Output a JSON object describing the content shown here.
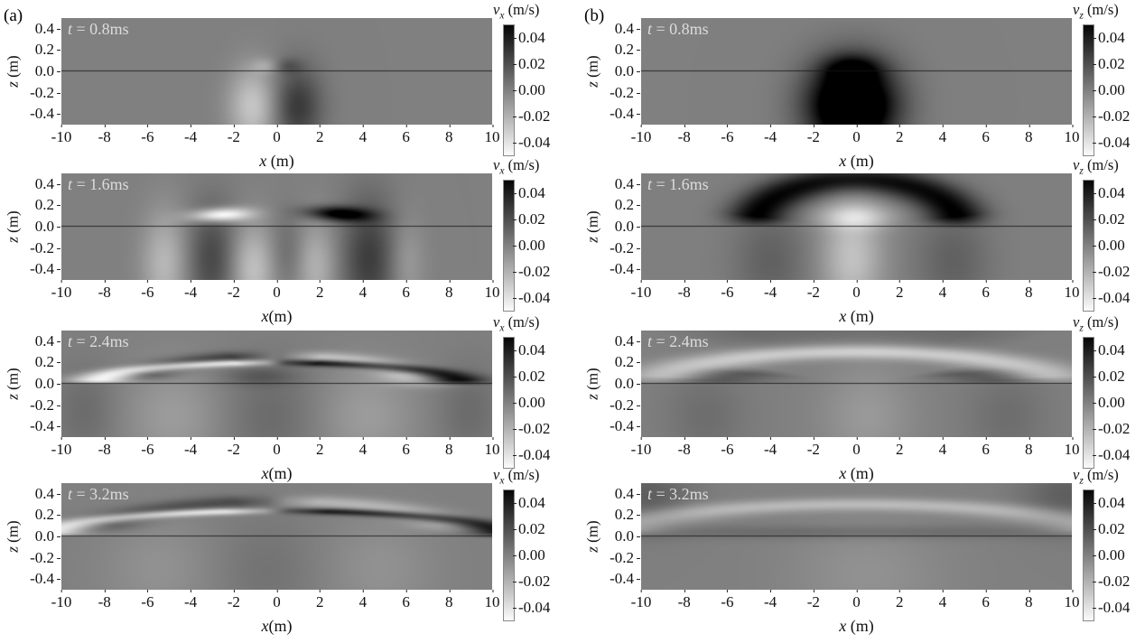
{
  "figure": {
    "label_a": "(a)",
    "label_b": "(b)"
  },
  "chart_data": {
    "type": "heatmap",
    "description": "Grayscale wavefield snapshots of particle velocity near a free surface; column (a) horizontal component vx, column (b) vertical component vz, at four times",
    "x_range": [
      -10,
      10
    ],
    "z_range": [
      -0.5,
      0.5
    ],
    "color_range": [
      -0.05,
      0.05
    ],
    "colormap": "grayscale, black = +0.05 m/s, mid-gray = 0, white = -0.05 m/s",
    "surface_line_z": 0,
    "zlabel_var": "z",
    "zlabel_unit": " (m)",
    "cbar_unit": " (m/s)",
    "xticks": [
      {
        "v": -10,
        "label": "-10"
      },
      {
        "v": -8,
        "label": "-8"
      },
      {
        "v": -6,
        "label": "-6"
      },
      {
        "v": -4,
        "label": "-4"
      },
      {
        "v": -2,
        "label": "-2"
      },
      {
        "v": 0,
        "label": "0"
      },
      {
        "v": 2,
        "label": "2"
      },
      {
        "v": 4,
        "label": "4"
      },
      {
        "v": 6,
        "label": "6"
      },
      {
        "v": 8,
        "label": "8"
      },
      {
        "v": 10,
        "label": "10"
      }
    ],
    "zticks": [
      {
        "v": 0.4,
        "label": "0.4"
      },
      {
        "v": 0.2,
        "label": "0.2"
      },
      {
        "v": 0.0,
        "label": "0.0"
      },
      {
        "v": -0.2,
        "label": "-0.2"
      },
      {
        "v": -0.4,
        "label": "-0.4"
      }
    ],
    "cbar_ticks": [
      {
        "v": 0.04,
        "label": "0.04"
      },
      {
        "v": 0.02,
        "label": "0.02"
      },
      {
        "v": 0.0,
        "label": "0.00"
      },
      {
        "v": -0.02,
        "label": "-0.02"
      },
      {
        "v": -0.04,
        "label": "-0.04"
      }
    ],
    "panels": [
      {
        "id": "a-0.8ms",
        "column": "a",
        "row": 1,
        "t_ms": 0.8,
        "velocity_component": "vx",
        "time_var": "t",
        "time_rest": " = 0.8ms",
        "xlabel_var": "x",
        "xlabel_unit": " (m)",
        "cbar_var": "v",
        "cbar_sub": "x",
        "features": [
          {
            "type": "blob",
            "x": -1.1,
            "z": -0.33,
            "sx": 0.8,
            "sz": 0.26,
            "amp": -0.028
          },
          {
            "type": "blob",
            "x": 0.95,
            "z": -0.33,
            "sx": 0.8,
            "sz": 0.26,
            "amp": 0.028
          },
          {
            "type": "blob",
            "x": -0.5,
            "z": 0.05,
            "sx": 0.45,
            "sz": 0.05,
            "amp": -0.012
          },
          {
            "type": "blob",
            "x": 0.5,
            "z": 0.05,
            "sx": 0.45,
            "sz": 0.05,
            "amp": 0.012
          }
        ]
      },
      {
        "id": "a-1.6ms",
        "column": "a",
        "row": 2,
        "t_ms": 1.6,
        "velocity_component": "vx",
        "time_var": "t",
        "time_rest": " = 1.6ms",
        "xlabel_var": "x",
        "xlabel_unit": "(m)",
        "cbar_var": "v",
        "cbar_sub": "x",
        "features": [
          {
            "type": "blob",
            "x": -2.6,
            "z": 0.11,
            "sx": 1.0,
            "sz": 0.042,
            "amp": -0.055,
            "tilt": 38
          },
          {
            "type": "blob",
            "x": 2.9,
            "z": 0.12,
            "sx": 1.1,
            "sz": 0.045,
            "amp": 0.055,
            "tilt": -35
          },
          {
            "type": "blob",
            "x": -5.2,
            "z": -0.35,
            "sx": 0.75,
            "sz": 0.35,
            "amp": -0.022
          },
          {
            "type": "blob",
            "x": -3.0,
            "z": -0.3,
            "sx": 0.8,
            "sz": 0.35,
            "amp": 0.022
          },
          {
            "type": "blob",
            "x": -1.1,
            "z": -0.4,
            "sx": 0.75,
            "sz": 0.3,
            "amp": -0.026
          },
          {
            "type": "blob",
            "x": 0.5,
            "z": -0.25,
            "sx": 0.6,
            "sz": 0.25,
            "amp": 0.01
          },
          {
            "type": "blob",
            "x": 1.8,
            "z": -0.38,
            "sx": 0.7,
            "sz": 0.3,
            "amp": -0.02
          },
          {
            "type": "blob",
            "x": 4.3,
            "z": -0.3,
            "sx": 0.9,
            "sz": 0.4,
            "amp": 0.026
          },
          {
            "type": "blob",
            "x": 6.0,
            "z": -0.35,
            "sx": 0.6,
            "sz": 0.3,
            "amp": -0.012
          }
        ]
      },
      {
        "id": "a-2.4ms",
        "column": "a",
        "row": 3,
        "t_ms": 2.4,
        "velocity_component": "vx",
        "time_var": "t",
        "time_rest": " = 2.4ms",
        "xlabel_var": "x",
        "xlabel_unit": "(m)",
        "cbar_var": "v",
        "cbar_sub": "x",
        "features": [
          {
            "type": "arc",
            "cx": 0,
            "cz": 0,
            "rx": 8.4,
            "rz": 0.2,
            "a0": 95,
            "a1": 178,
            "w": 0.16,
            "amp": -0.05
          },
          {
            "type": "arc",
            "cx": 0,
            "cz": 0,
            "rx": 6.5,
            "rz": 0.26,
            "a0": 100,
            "a1": 168,
            "w": 0.2,
            "amp": 0.026
          },
          {
            "type": "arc",
            "cx": 0,
            "cz": 0,
            "rx": 8.4,
            "rz": 0.2,
            "a0": 2,
            "a1": 85,
            "w": 0.16,
            "amp": 0.05
          },
          {
            "type": "arc",
            "cx": 0,
            "cz": 0,
            "rx": 6.5,
            "rz": 0.26,
            "a0": 12,
            "a1": 80,
            "w": 0.2,
            "amp": -0.026
          },
          {
            "type": "blob",
            "x": -0.8,
            "z": 0.07,
            "sx": 1.2,
            "sz": 0.06,
            "amp": 0.012
          },
          {
            "type": "blob",
            "x": 6.8,
            "z": 0.03,
            "sx": 1.2,
            "sz": 0.045,
            "amp": -0.018
          },
          {
            "type": "blob",
            "x": -4.8,
            "z": -0.3,
            "sx": 1.6,
            "sz": 0.35,
            "amp": -0.011
          },
          {
            "type": "blob",
            "x": 4.2,
            "z": -0.3,
            "sx": 1.6,
            "sz": 0.35,
            "amp": -0.011
          },
          {
            "type": "blob",
            "x": -0.3,
            "z": -0.3,
            "sx": 1.5,
            "sz": 0.35,
            "amp": 0.008
          },
          {
            "type": "blob",
            "x": -8.9,
            "z": -0.25,
            "sx": 1.0,
            "sz": 0.3,
            "amp": 0.008
          },
          {
            "type": "blob",
            "x": 8.9,
            "z": -0.25,
            "sx": 1.0,
            "sz": 0.3,
            "amp": 0.008
          }
        ]
      },
      {
        "id": "a-3.2ms",
        "column": "a",
        "row": 4,
        "t_ms": 3.2,
        "velocity_component": "vx",
        "time_var": "t",
        "time_rest": " = 3.2ms",
        "xlabel_var": "x",
        "xlabel_unit": "(m)",
        "cbar_var": "v",
        "cbar_sub": "x",
        "features": [
          {
            "type": "arc",
            "cx": 0,
            "cz": 0,
            "rx": 10.6,
            "rz": 0.24,
            "a0": 95,
            "a1": 178,
            "w": 0.13,
            "amp": -0.042
          },
          {
            "type": "arc",
            "cx": 0,
            "cz": 0,
            "rx": 8.4,
            "rz": 0.33,
            "a0": 95,
            "a1": 168,
            "w": 0.18,
            "amp": 0.02
          },
          {
            "type": "arc",
            "cx": 0,
            "cz": 0,
            "rx": 10.6,
            "rz": 0.24,
            "a0": 2,
            "a1": 85,
            "w": 0.13,
            "amp": 0.042
          },
          {
            "type": "arc",
            "cx": 0,
            "cz": 0,
            "rx": 8.4,
            "rz": 0.33,
            "a0": 12,
            "a1": 85,
            "w": 0.18,
            "amp": -0.02
          },
          {
            "type": "blob",
            "x": -5.5,
            "z": -0.3,
            "sx": 1.8,
            "sz": 0.35,
            "amp": -0.007
          },
          {
            "type": "blob",
            "x": 4.8,
            "z": -0.3,
            "sx": 1.8,
            "sz": 0.35,
            "amp": -0.007
          },
          {
            "type": "blob",
            "x": -0.5,
            "z": -0.32,
            "sx": 1.6,
            "sz": 0.35,
            "amp": 0.005
          }
        ]
      },
      {
        "id": "b-0.8ms",
        "column": "b",
        "row": 1,
        "t_ms": 0.8,
        "velocity_component": "vz",
        "time_var": "t",
        "time_rest": " = 0.8ms",
        "xlabel_var": "x",
        "xlabel_unit": " (m)",
        "cbar_var": "v",
        "cbar_sub": "z",
        "features": [
          {
            "type": "blob",
            "x": -0.2,
            "z": -0.32,
            "sx": 1.4,
            "sz": 0.28,
            "amp": 0.09
          },
          {
            "type": "blob",
            "x": -0.2,
            "z": 0.02,
            "sx": 0.9,
            "sz": 0.09,
            "amp": 0.03
          }
        ]
      },
      {
        "id": "b-1.6ms",
        "column": "b",
        "row": 2,
        "t_ms": 1.6,
        "velocity_component": "vz",
        "time_var": "t",
        "time_rest": " = 1.6ms",
        "xlabel_var": "x",
        "xlabel_unit": " (m)",
        "cbar_var": "v",
        "cbar_sub": "z",
        "features": [
          {
            "type": "arc",
            "cx": 0,
            "cz": 0,
            "rx": 4.8,
            "rz": 0.44,
            "a0": 5,
            "a1": 175,
            "w": 0.28,
            "amp": 0.046
          },
          {
            "type": "blob",
            "x": 0,
            "z": 0.09,
            "sx": 1.2,
            "sz": 0.08,
            "amp": -0.024
          },
          {
            "type": "blob",
            "x": -0.2,
            "z": -0.28,
            "sx": 1.0,
            "sz": 0.38,
            "amp": -0.026
          },
          {
            "type": "blob",
            "x": -4.0,
            "z": -0.32,
            "sx": 1.2,
            "sz": 0.35,
            "amp": 0.012
          },
          {
            "type": "blob",
            "x": 4.5,
            "z": -0.32,
            "sx": 1.2,
            "sz": 0.35,
            "amp": 0.012
          }
        ]
      },
      {
        "id": "b-2.4ms",
        "column": "b",
        "row": 3,
        "t_ms": 2.4,
        "velocity_component": "vz",
        "time_var": "t",
        "time_rest": " = 2.4ms",
        "xlabel_var": "x",
        "xlabel_unit": " (m)",
        "cbar_var": "v",
        "cbar_sub": "z",
        "features": [
          {
            "type": "arc",
            "cx": 0,
            "cz": 0,
            "rx": 9.0,
            "rz": 0.3,
            "a0": 5,
            "a1": 175,
            "w": 0.22,
            "amp": -0.03
          },
          {
            "type": "arc",
            "cx": 0,
            "cz": 0,
            "rx": 7.0,
            "rz": 0.15,
            "a0": 130,
            "a1": 176,
            "w": 0.35,
            "amp": 0.016
          },
          {
            "type": "arc",
            "cx": 0,
            "cz": 0,
            "rx": 7.0,
            "rz": 0.15,
            "a0": 4,
            "a1": 50,
            "w": 0.35,
            "amp": 0.016
          },
          {
            "type": "arc",
            "cx": 0,
            "cz": 0,
            "rx": 11.5,
            "rz": 0.55,
            "a0": 55,
            "a1": 125,
            "w": 0.3,
            "amp": 0.008
          },
          {
            "type": "blob",
            "x": 0.5,
            "z": -0.3,
            "sx": 1.5,
            "sz": 0.35,
            "amp": -0.01
          },
          {
            "type": "blob",
            "x": -7.0,
            "z": -0.3,
            "sx": 1.3,
            "sz": 0.3,
            "amp": 0.007
          },
          {
            "type": "blob",
            "x": 7.0,
            "z": -0.3,
            "sx": 1.3,
            "sz": 0.3,
            "amp": 0.007
          }
        ]
      },
      {
        "id": "b-3.2ms",
        "column": "b",
        "row": 4,
        "t_ms": 3.2,
        "velocity_component": "vz",
        "time_var": "t",
        "time_rest": " = 3.2ms",
        "xlabel_var": "x",
        "xlabel_unit": " (m)",
        "cbar_var": "v",
        "cbar_sub": "z",
        "features": [
          {
            "type": "arc",
            "cx": 0,
            "cz": 0,
            "rx": 11.2,
            "rz": 0.3,
            "a0": 5,
            "a1": 175,
            "w": 0.2,
            "amp": -0.022
          },
          {
            "type": "blob",
            "x": -9.8,
            "z": 0.38,
            "sx": 1.5,
            "sz": 0.22,
            "amp": 0.013
          },
          {
            "type": "blob",
            "x": 9.8,
            "z": 0.38,
            "sx": 1.5,
            "sz": 0.22,
            "amp": 0.013
          },
          {
            "type": "blob",
            "x": 0,
            "z": 0.04,
            "sx": 8.0,
            "sz": 0.045,
            "amp": 0.009
          },
          {
            "type": "blob",
            "x": 0.5,
            "z": -0.35,
            "sx": 2.5,
            "sz": 0.35,
            "amp": -0.007
          }
        ]
      }
    ]
  }
}
